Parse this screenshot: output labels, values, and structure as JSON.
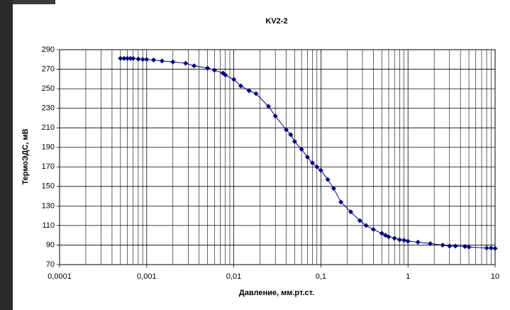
{
  "chart_data": {
    "type": "line",
    "title": "KV2-2",
    "x_label": "Давление, мм.рт.ст.",
    "y_label": "ТермоЭДС, мВ",
    "x_log": true,
    "grid": true,
    "color": "#000080",
    "xlim": [
      0.0001,
      10
    ],
    "ylim": [
      70,
      290
    ],
    "xticks": [
      {
        "value": 0.0001,
        "label": "0,0001"
      },
      {
        "value": 0.001,
        "label": "0,001"
      },
      {
        "value": 0.01,
        "label": "0,01"
      },
      {
        "value": 0.1,
        "label": "0,1"
      },
      1,
      10
    ],
    "minor_xticks": [
      0.0002,
      0.0003,
      0.0004,
      0.0005,
      0.0006,
      0.0007,
      0.0008,
      0.0009,
      0.002,
      0.003,
      0.004,
      0.005,
      0.006,
      0.007,
      0.008,
      0.009,
      0.02,
      0.03,
      0.04,
      0.05,
      0.06,
      0.07,
      0.08,
      0.09,
      0.2,
      0.3,
      0.4,
      0.5,
      0.6,
      0.7,
      0.8,
      0.9,
      2,
      3,
      4,
      5,
      6,
      7,
      8,
      9
    ],
    "yticks": [
      70,
      90,
      110,
      130,
      150,
      170,
      190,
      210,
      230,
      250,
      270,
      290
    ],
    "x": [
      0.0005,
      0.00055,
      0.0006,
      0.00065,
      0.0007,
      0.0008,
      0.0009,
      0.001,
      0.0012,
      0.0015,
      0.002,
      0.0028,
      0.0035,
      0.005,
      0.006,
      0.0075,
      0.008,
      0.01,
      0.012,
      0.015,
      0.018,
      0.025,
      0.03,
      0.04,
      0.045,
      0.05,
      0.06,
      0.07,
      0.08,
      0.09,
      0.1,
      0.12,
      0.14,
      0.17,
      0.22,
      0.28,
      0.33,
      0.4,
      0.5,
      0.55,
      0.6,
      0.7,
      0.8,
      0.9,
      1,
      1.3,
      1.8,
      2.5,
      3,
      3.5,
      4.5,
      5,
      8,
      9,
      10
    ],
    "values": [
      281,
      281,
      281,
      281,
      281,
      280.5,
      280,
      280,
      279.5,
      278.5,
      277.5,
      276,
      273.5,
      271,
      269,
      266,
      264,
      259.5,
      253,
      248,
      245,
      232,
      222,
      208,
      203,
      196,
      188,
      180,
      174,
      170,
      166.5,
      157,
      148,
      134,
      124,
      115,
      110,
      106,
      102,
      100,
      98.5,
      97,
      95.5,
      95,
      94,
      93,
      91.5,
      90,
      89,
      89,
      88.5,
      88,
      87,
      87,
      86.5
    ]
  }
}
